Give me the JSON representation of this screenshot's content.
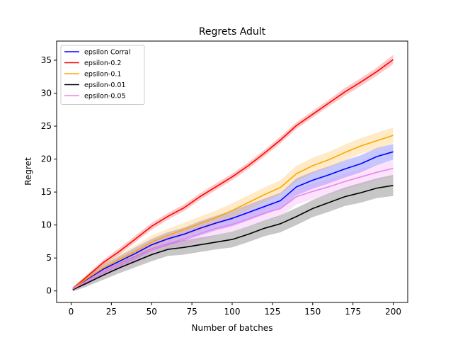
{
  "chart_data": {
    "type": "line",
    "title": "Regrets Adult",
    "xlabel": "Number of batches",
    "ylabel": "Regret",
    "xlim": [
      -9,
      209
    ],
    "ylim": [
      -1.75,
      37.9
    ],
    "xticks": [
      0,
      25,
      50,
      75,
      100,
      125,
      150,
      175,
      200
    ],
    "yticks": [
      0,
      5,
      10,
      15,
      20,
      25,
      30,
      35
    ],
    "grid": false,
    "legend_position": "top-left",
    "series": [
      {
        "name": "epsilon Corral",
        "color": "#0000ff",
        "x": [
          1,
          10,
          20,
          30,
          40,
          50,
          60,
          70,
          80,
          90,
          100,
          110,
          120,
          130,
          140,
          150,
          160,
          170,
          180,
          190,
          200
        ],
        "y": [
          0.3,
          1.8,
          3.3,
          4.5,
          5.7,
          7.0,
          7.9,
          8.6,
          9.5,
          10.3,
          11.0,
          11.9,
          12.8,
          13.7,
          15.8,
          16.8,
          17.6,
          18.5,
          19.3,
          20.4,
          21.1
        ],
        "band": [
          0.3,
          0.5,
          0.7,
          0.8,
          0.9,
          0.9,
          1.0,
          1.0,
          1.1,
          1.1,
          1.2,
          1.2,
          1.2,
          1.2,
          1.3,
          1.3,
          1.3,
          1.3,
          1.3,
          1.3,
          1.2
        ]
      },
      {
        "name": "epsilon-0.2",
        "color": "#ff0000",
        "x": [
          1,
          10,
          20,
          30,
          40,
          50,
          60,
          70,
          80,
          90,
          100,
          110,
          120,
          130,
          140,
          150,
          160,
          170,
          180,
          190,
          200
        ],
        "y": [
          0.3,
          2.2,
          4.3,
          6.0,
          7.9,
          9.8,
          11.3,
          12.6,
          14.3,
          15.8,
          17.3,
          19.0,
          20.9,
          22.9,
          25.1,
          26.8,
          28.5,
          30.2,
          31.7,
          33.3,
          35.1
        ],
        "band": [
          0.2,
          0.3,
          0.4,
          0.5,
          0.5,
          0.5,
          0.5,
          0.5,
          0.5,
          0.5,
          0.5,
          0.5,
          0.5,
          0.5,
          0.5,
          0.5,
          0.5,
          0.6,
          0.6,
          0.6,
          0.7
        ]
      },
      {
        "name": "epsilon-0.1",
        "color": "#ffa500",
        "x": [
          1,
          10,
          20,
          30,
          40,
          50,
          60,
          70,
          80,
          90,
          100,
          110,
          120,
          130,
          140,
          150,
          160,
          170,
          180,
          190,
          200
        ],
        "y": [
          0.3,
          1.9,
          3.5,
          4.8,
          6.0,
          7.4,
          8.4,
          9.3,
          10.2,
          11.1,
          12.2,
          13.4,
          14.6,
          15.7,
          17.8,
          19.0,
          19.9,
          21.0,
          22.0,
          22.8,
          23.6
        ],
        "band": [
          0.3,
          0.5,
          0.7,
          0.8,
          0.9,
          1.0,
          1.0,
          1.0,
          1.1,
          1.1,
          1.1,
          1.1,
          1.1,
          1.1,
          1.2,
          1.2,
          1.2,
          1.2,
          1.2,
          1.2,
          1.2
        ]
      },
      {
        "name": "epsilon-0.01",
        "color": "#000000",
        "x": [
          1,
          10,
          20,
          30,
          40,
          50,
          60,
          70,
          80,
          90,
          100,
          110,
          120,
          130,
          140,
          150,
          160,
          170,
          180,
          190,
          200
        ],
        "y": [
          0.2,
          1.2,
          2.4,
          3.5,
          4.5,
          5.5,
          6.3,
          6.6,
          7.0,
          7.4,
          7.8,
          8.6,
          9.5,
          10.2,
          11.3,
          12.5,
          13.4,
          14.3,
          14.9,
          15.6,
          16.0
        ],
        "band": [
          0.3,
          0.5,
          0.7,
          0.8,
          0.9,
          1.0,
          1.0,
          1.1,
          1.1,
          1.1,
          1.2,
          1.2,
          1.2,
          1.3,
          1.3,
          1.3,
          1.4,
          1.4,
          1.5,
          1.5,
          1.6
        ]
      },
      {
        "name": "epsilon-0.05",
        "color": "#ee82ee",
        "x": [
          1,
          10,
          20,
          30,
          40,
          50,
          60,
          70,
          80,
          90,
          100,
          110,
          120,
          130,
          140,
          150,
          160,
          170,
          180,
          190,
          200
        ],
        "y": [
          0.3,
          1.5,
          2.9,
          4.0,
          5.1,
          6.3,
          7.2,
          7.9,
          8.7,
          9.5,
          10.1,
          10.9,
          11.8,
          12.5,
          14.3,
          15.1,
          15.8,
          16.6,
          17.3,
          18.0,
          18.6
        ],
        "band": [
          0.3,
          0.5,
          0.7,
          0.8,
          0.9,
          1.0,
          1.0,
          1.1,
          1.1,
          1.1,
          1.1,
          1.2,
          1.2,
          1.2,
          1.2,
          1.2,
          1.2,
          1.2,
          1.2,
          1.2,
          1.2
        ]
      }
    ]
  }
}
